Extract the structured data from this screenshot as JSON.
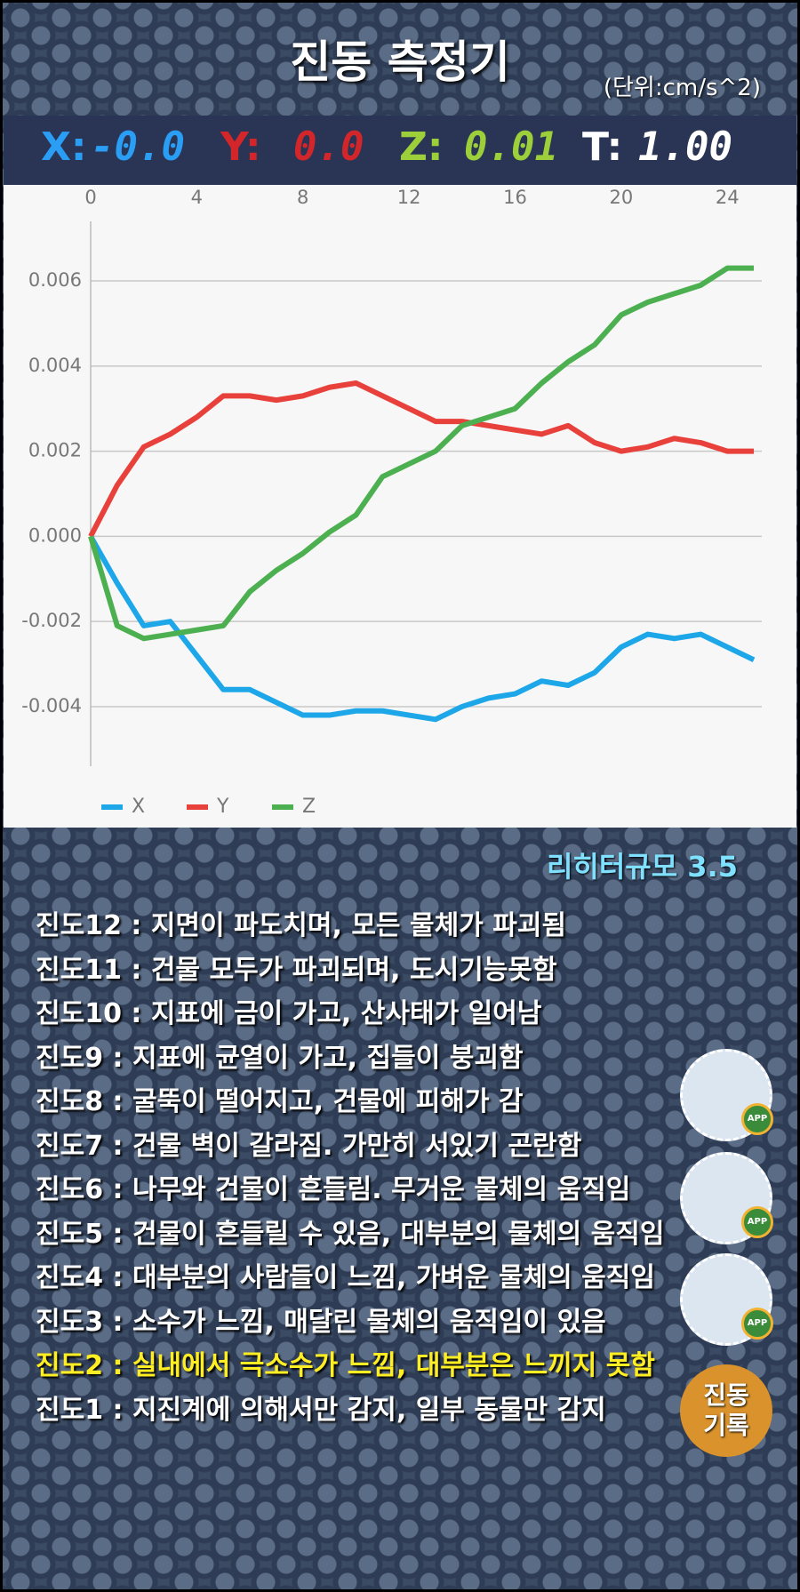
{
  "header": {
    "title": "진동 측정기",
    "unit": "(단위:cm/s^2)"
  },
  "readouts": [
    {
      "label": "X:",
      "value": "-0.0"
    },
    {
      "label": "Y:",
      "value": "0.0"
    },
    {
      "label": "Z:",
      "value": "0.01"
    },
    {
      "label": "T:",
      "value": "1.00"
    }
  ],
  "chart_data": {
    "type": "line",
    "x": [
      0,
      1,
      2,
      3,
      4,
      5,
      6,
      7,
      8,
      9,
      10,
      11,
      12,
      13,
      14,
      15,
      16,
      17,
      18,
      19,
      20,
      21,
      22,
      23,
      24,
      25
    ],
    "series": [
      {
        "name": "X",
        "color": "#1ea7e8",
        "values": [
          0,
          -0.0011,
          -0.0021,
          -0.002,
          -0.0028,
          -0.0036,
          -0.0036,
          -0.0039,
          -0.0042,
          -0.0042,
          -0.0041,
          -0.0041,
          -0.0042,
          -0.0043,
          -0.004,
          -0.0038,
          -0.0037,
          -0.0034,
          -0.0035,
          -0.0032,
          -0.0026,
          -0.0023,
          -0.0024,
          -0.0023,
          -0.0026,
          -0.0029
        ]
      },
      {
        "name": "Y",
        "color": "#e8403a",
        "values": [
          0,
          0.0012,
          0.0021,
          0.0024,
          0.0028,
          0.0033,
          0.0033,
          0.0032,
          0.0033,
          0.0035,
          0.0036,
          0.0033,
          0.003,
          0.0027,
          0.0027,
          0.0026,
          0.0025,
          0.0024,
          0.0026,
          0.0022,
          0.002,
          0.0021,
          0.0023,
          0.0022,
          0.002,
          0.002
        ]
      },
      {
        "name": "Z",
        "color": "#4caf50",
        "values": [
          0,
          -0.0021,
          -0.0024,
          -0.0023,
          -0.0022,
          -0.0021,
          -0.0013,
          -0.0008,
          -0.0004,
          0.0001,
          0.0005,
          0.0014,
          0.0017,
          0.002,
          0.0026,
          0.0028,
          0.003,
          0.0036,
          0.0041,
          0.0045,
          0.0052,
          0.0055,
          0.0057,
          0.0059,
          0.0063,
          0.0063
        ]
      }
    ],
    "xlim": [
      0,
      25.3
    ],
    "xticks": [
      0,
      4,
      8,
      12,
      16,
      20,
      24
    ],
    "ylim": [
      -0.0054,
      0.0074
    ],
    "yticks": [
      -0.004,
      -0.002,
      {
        "value": 0,
        "label": "0.000"
      },
      0.002,
      0.004,
      0.006
    ],
    "grid": true,
    "legend": "bottom-left"
  },
  "richter": "리히터규모 3.5",
  "levels": [
    "진도12 : 지면이 파도치며, 모든 물체가 파괴됨",
    "진도11 : 건물 모두가 파괴되며, 도시기능못함",
    "진도10 : 지표에 금이 가고, 산사태가 일어남",
    "진도9 : 지표에 균열이 가고, 집들이 붕괴함",
    "진도8 : 굴뚝이 떨어지고, 건물에 피해가 감",
    "진도7 : 건물 벽이 갈라짐. 가만히 서있기 곤란함",
    "진도6 : 나무와 건물이 흔들림. 무거운 물체의 움직임",
    "진도5 : 건물이 흔들릴 수 있음, 대부분의 물체의 움직임",
    "진도4 : 대부분의 사람들이 느낌, 가벼운 물체의 움직임",
    "진도3 : 소수가 느낌, 매달린 물체의 움직임이 있음",
    "진도2 : 실내에서 극소수가 느낌, 대부분은 느끼지 못함",
    "진도1 : 지진계에 의해서만 감지, 일부 동물만 감지"
  ],
  "apps": [
    "APP",
    "APP",
    "APP"
  ],
  "record_button": "진동 기록"
}
